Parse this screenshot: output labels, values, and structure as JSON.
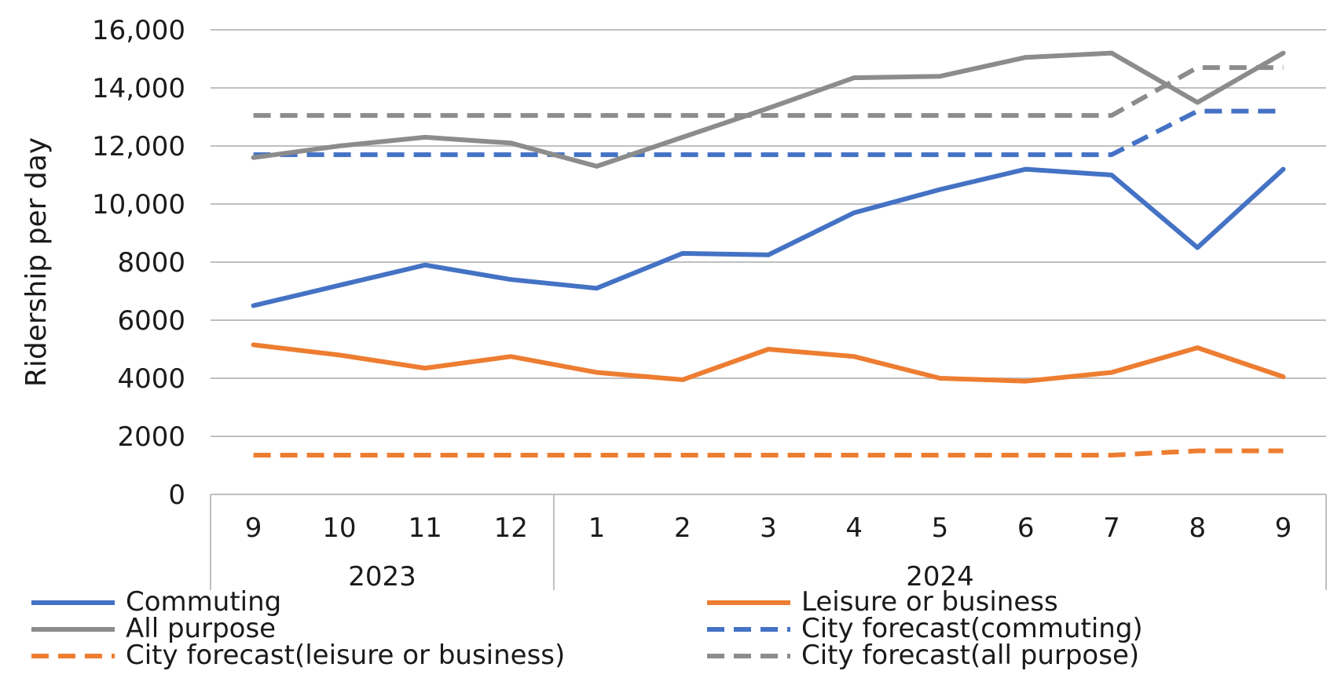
{
  "chart_data": {
    "type": "line",
    "ylabel": "Ridership per day",
    "ylim": [
      0,
      16000
    ],
    "yticks": [
      0,
      2000,
      4000,
      6000,
      8000,
      10000,
      12000,
      14000,
      16000
    ],
    "ytick_labels": [
      "0",
      "2000",
      "4000",
      "6000",
      "8000",
      "10,000",
      "12,000",
      "14,000",
      "16,000"
    ],
    "categories": [
      "9",
      "10",
      "11",
      "12",
      "1",
      "2",
      "3",
      "4",
      "5",
      "6",
      "7",
      "8",
      "9"
    ],
    "year_groups": [
      {
        "label": "2023",
        "start": 0,
        "end": 3
      },
      {
        "label": "2024",
        "start": 4,
        "end": 12
      }
    ],
    "grid": true,
    "legend_position": "bottom",
    "series": [
      {
        "name": "Commuting",
        "color": "#4472C4",
        "dashed": false,
        "values": [
          6500,
          7200,
          7900,
          7400,
          7100,
          8300,
          8250,
          9700,
          10500,
          11200,
          11000,
          8500,
          11200
        ]
      },
      {
        "name": "Leisure or business",
        "color": "#ED7D31",
        "dashed": false,
        "values": [
          5150,
          4800,
          4350,
          4750,
          4200,
          3950,
          5000,
          4750,
          4000,
          3900,
          4200,
          5050,
          4050
        ]
      },
      {
        "name": "All purpose",
        "color": "#8C8C8C",
        "dashed": false,
        "values": [
          11600,
          12000,
          12300,
          12100,
          11300,
          12300,
          13300,
          14350,
          14400,
          15050,
          15200,
          13500,
          15200
        ]
      },
      {
        "name": "City forecast(commuting)",
        "color": "#4472C4",
        "dashed": true,
        "values": [
          11700,
          11700,
          11700,
          11700,
          11700,
          11700,
          11700,
          11700,
          11700,
          11700,
          11700,
          13200,
          13200
        ]
      },
      {
        "name": "City forecast(leisure or business)",
        "color": "#ED7D31",
        "dashed": true,
        "values": [
          1350,
          1350,
          1350,
          1350,
          1350,
          1350,
          1350,
          1350,
          1350,
          1350,
          1350,
          1500,
          1500
        ]
      },
      {
        "name": "City forecast(all purpose)",
        "color": "#8C8C8C",
        "dashed": true,
        "values": [
          13050,
          13050,
          13050,
          13050,
          13050,
          13050,
          13050,
          13050,
          13050,
          13050,
          13050,
          14700,
          14700
        ]
      }
    ]
  }
}
